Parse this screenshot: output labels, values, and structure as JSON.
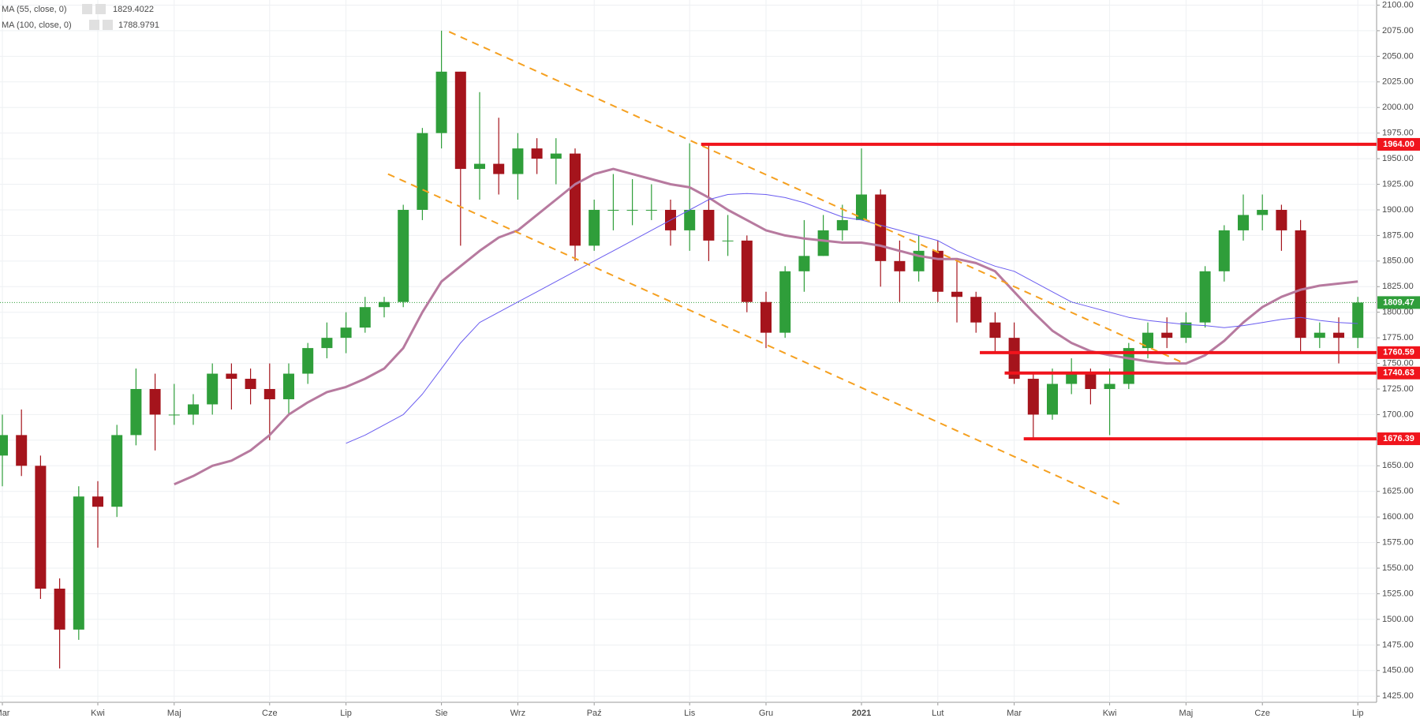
{
  "chart_data": {
    "type": "candlestick",
    "categories": [
      "Mar",
      null,
      null,
      null,
      null,
      "Kwi",
      null,
      null,
      null,
      "Maj",
      null,
      null,
      null,
      null,
      "Cze",
      null,
      null,
      null,
      "Lip",
      null,
      null,
      null,
      null,
      "Sie",
      null,
      null,
      null,
      "Wrz",
      null,
      null,
      null,
      "Paź",
      null,
      null,
      null,
      null,
      "Lis",
      null,
      null,
      null,
      "Gru",
      null,
      null,
      null,
      null,
      "2021",
      null,
      null,
      null,
      "Lut",
      null,
      null,
      null,
      "Mar",
      null,
      null,
      null,
      null,
      "Kwi",
      null,
      null,
      null,
      "Maj",
      null,
      null,
      null,
      "Cze",
      null,
      null,
      null,
      null,
      "Lip"
    ],
    "open": [
      1660,
      1680,
      1650,
      1530,
      1490,
      1620,
      1610,
      1680,
      1725,
      1700,
      1700,
      1710,
      1740,
      1735,
      1725,
      1715,
      1740,
      1765,
      1775,
      1785,
      1805,
      1810,
      1900,
      1975,
      2035,
      1940,
      1945,
      1935,
      1960,
      1950,
      1955,
      1865,
      1900,
      1900,
      1900,
      1900,
      1880,
      1900,
      1870,
      1870,
      1810,
      1780,
      1840,
      1855,
      1880,
      1890,
      1915,
      1850,
      1840,
      1860,
      1820,
      1815,
      1790,
      1775,
      1735,
      1700,
      1730,
      1740,
      1725,
      1730,
      1765,
      1780,
      1775,
      1790,
      1840,
      1880,
      1895,
      1900,
      1880,
      1775,
      1780,
      1775
    ],
    "high": [
      1700,
      1705,
      1660,
      1540,
      1630,
      1635,
      1690,
      1745,
      1740,
      1730,
      1720,
      1750,
      1750,
      1745,
      1750,
      1750,
      1770,
      1790,
      1800,
      1815,
      1815,
      1905,
      1980,
      2075,
      2035,
      2015,
      1990,
      1975,
      1970,
      1970,
      1960,
      1910,
      1935,
      1930,
      1925,
      1910,
      1965,
      1965,
      1895,
      1875,
      1820,
      1845,
      1890,
      1895,
      1905,
      1960,
      1920,
      1870,
      1875,
      1870,
      1850,
      1820,
      1800,
      1790,
      1740,
      1745,
      1755,
      1745,
      1745,
      1770,
      1790,
      1795,
      1800,
      1845,
      1885,
      1915,
      1915,
      1905,
      1890,
      1790,
      1795,
      1815
    ],
    "low": [
      1630,
      1640,
      1520,
      1452,
      1480,
      1570,
      1600,
      1670,
      1665,
      1690,
      1690,
      1700,
      1705,
      1710,
      1675,
      1700,
      1730,
      1755,
      1760,
      1780,
      1795,
      1805,
      1890,
      1960,
      1865,
      1910,
      1915,
      1910,
      1935,
      1925,
      1850,
      1860,
      1880,
      1885,
      1890,
      1865,
      1860,
      1850,
      1855,
      1800,
      1765,
      1775,
      1820,
      1855,
      1870,
      1890,
      1825,
      1810,
      1830,
      1810,
      1790,
      1780,
      1760,
      1730,
      1676,
      1695,
      1720,
      1710,
      1680,
      1725,
      1755,
      1765,
      1770,
      1785,
      1830,
      1870,
      1880,
      1860,
      1760,
      1765,
      1750,
      1765
    ],
    "close": [
      1680,
      1650,
      1530,
      1490,
      1620,
      1610,
      1680,
      1725,
      1700,
      1700,
      1710,
      1740,
      1735,
      1725,
      1715,
      1740,
      1765,
      1775,
      1785,
      1805,
      1810,
      1900,
      1975,
      2035,
      1940,
      1945,
      1935,
      1960,
      1950,
      1955,
      1865,
      1900,
      1900,
      1900,
      1900,
      1880,
      1900,
      1870,
      1870,
      1810,
      1780,
      1840,
      1855,
      1880,
      1890,
      1915,
      1850,
      1840,
      1860,
      1820,
      1815,
      1790,
      1775,
      1735,
      1700,
      1730,
      1740,
      1725,
      1730,
      1765,
      1780,
      1775,
      1790,
      1840,
      1880,
      1895,
      1900,
      1880,
      1775,
      1780,
      1775,
      1809.47
    ],
    "up_color": "#2f9e3a",
    "down_color": "#a5141c",
    "ylim": [
      1419,
      2105
    ],
    "yticks": [
      {
        "value": 1425,
        "label": "1425.00"
      },
      {
        "value": 1450,
        "label": "1450.00"
      },
      {
        "value": 1475,
        "label": "1475.00"
      },
      {
        "value": 1500,
        "label": "1500.00"
      },
      {
        "value": 1525,
        "label": "1525.00"
      },
      {
        "value": 1550,
        "label": "1550.00"
      },
      {
        "value": 1575,
        "label": "1575.00"
      },
      {
        "value": 1600,
        "label": "1600.00"
      },
      {
        "value": 1625,
        "label": "1625.00"
      },
      {
        "value": 1650,
        "label": "1650.00"
      },
      {
        "value": 1675,
        "label": "1675.00"
      },
      {
        "value": 1700,
        "label": "1700.00"
      },
      {
        "value": 1725,
        "label": "1725.00"
      },
      {
        "value": 1750,
        "label": "1750.00"
      },
      {
        "value": 1775,
        "label": "1775.00"
      },
      {
        "value": 1800,
        "label": "1800.00"
      },
      {
        "value": 1825,
        "label": "1825.00"
      },
      {
        "value": 1850,
        "label": "1850.00"
      },
      {
        "value": 1875,
        "label": "1875.00"
      },
      {
        "value": 1900,
        "label": "1900.00"
      },
      {
        "value": 1925,
        "label": "1925.00"
      },
      {
        "value": 1950,
        "label": "1950.00"
      },
      {
        "value": 1975,
        "label": "1975.00"
      },
      {
        "value": 2000,
        "label": "2000.00"
      },
      {
        "value": 2025,
        "label": "2025.00"
      },
      {
        "value": 2050,
        "label": "2050.00"
      },
      {
        "value": 2075,
        "label": "2075.00"
      },
      {
        "value": 2100,
        "label": "2100.00"
      }
    ],
    "grid": true,
    "series": [
      {
        "name": "MA (55, close, 0)",
        "color": "#b77a9f",
        "width": 3,
        "legend_value": 1829.4022,
        "values": [
          null,
          null,
          null,
          null,
          null,
          null,
          null,
          null,
          null,
          1632,
          1640,
          1650,
          1655,
          1665,
          1680,
          1700,
          1712,
          1722,
          1727,
          1735,
          1745,
          1765,
          1800,
          1830,
          1845,
          1860,
          1873,
          1880,
          1895,
          1910,
          1925,
          1935,
          1940,
          1935,
          1930,
          1925,
          1922,
          1912,
          1900,
          1890,
          1880,
          1875,
          1872,
          1870,
          1868,
          1868,
          1865,
          1860,
          1855,
          1852,
          1852,
          1848,
          1840,
          1820,
          1800,
          1782,
          1770,
          1762,
          1758,
          1755,
          1752,
          1750,
          1750,
          1758,
          1772,
          1790,
          1805,
          1815,
          1822,
          1826,
          1828,
          1830
        ]
      },
      {
        "name": "MA (100, close, 0)",
        "color": "#6a5cf0",
        "width": 1,
        "legend_value": 1788.9791,
        "values": [
          null,
          null,
          null,
          null,
          null,
          null,
          null,
          null,
          null,
          null,
          null,
          null,
          null,
          null,
          null,
          null,
          null,
          null,
          1672,
          1680,
          1690,
          1700,
          1720,
          1745,
          1770,
          1790,
          1800,
          1810,
          1820,
          1830,
          1840,
          1850,
          1860,
          1870,
          1880,
          1890,
          1900,
          1910,
          1915,
          1916,
          1915,
          1912,
          1907,
          1900,
          1893,
          1890,
          1885,
          1880,
          1875,
          1870,
          1860,
          1852,
          1845,
          1840,
          1830,
          1820,
          1810,
          1805,
          1800,
          1795,
          1792,
          1790,
          1788,
          1787,
          1785,
          1787,
          1790,
          1793,
          1795,
          1792,
          1790,
          1789
        ]
      }
    ],
    "levels": [
      {
        "value": 1964,
        "label": "1964.00",
        "start": 36.6
      },
      {
        "value": 1760.59,
        "label": "1760.59",
        "start": 51.2
      },
      {
        "value": 1740.63,
        "label": "1740.63",
        "start": 52.5
      },
      {
        "value": 1676.39,
        "label": "1676.39",
        "start": 53.5
      }
    ],
    "level_color": "#f0141c",
    "trendlines": [
      {
        "x": [
          23.4,
          61.8
        ],
        "y": [
          2074,
          1751
        ]
      },
      {
        "x": [
          20.2,
          58.7
        ],
        "y": [
          1935,
          1611
        ]
      }
    ],
    "trend_color": "#f5a020",
    "last_price": 1809.47,
    "last_color": "#2f9e3a"
  }
}
